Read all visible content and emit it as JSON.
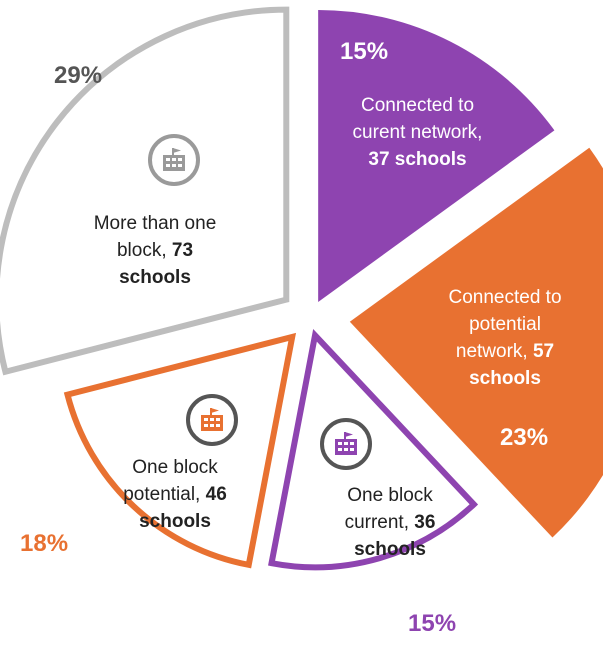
{
  "chart_data": {
    "type": "pie",
    "slices": [
      {
        "label": "Connected to curent network, 37 schools",
        "value": 15,
        "pct_label": "15%",
        "color": "#8e44b0",
        "style": "filled"
      },
      {
        "label": "Connected to potential network, 57 schools",
        "value": 23,
        "pct_label": "23%",
        "color": "#e87131",
        "style": "filled"
      },
      {
        "label": "One block current, 36 schools",
        "value": 15,
        "pct_label": "15%",
        "color": "#8e44b0",
        "style": "outline"
      },
      {
        "label": "One block potential, 46 schools",
        "value": 18,
        "pct_label": "18%",
        "color": "#e87131",
        "style": "outline"
      },
      {
        "label": "More than one block, 73 schools",
        "value": 29,
        "pct_label": "29%",
        "color": "#bdbdbd",
        "style": "outline"
      }
    ]
  },
  "labels": {
    "s1": {
      "l1": "Connected to",
      "l2": "curent network,",
      "l3b": "37 schools"
    },
    "s2": {
      "l1": "Connected to",
      "l2": "potential",
      "l3a": "network, ",
      "l3b": "57",
      "l4b": "schools"
    },
    "s3": {
      "l1": "One block",
      "l2a": "current, ",
      "l2b": "36",
      "l3b": "schools"
    },
    "s4": {
      "l1": "One block",
      "l2a": "potential, ",
      "l2b": "46",
      "l3b": "schools"
    },
    "s5": {
      "l1": "More than one",
      "l2a": "block, ",
      "l2b": "73",
      "l3b": "schools"
    }
  },
  "icons": {
    "s3": "school-icon",
    "s4": "school-icon",
    "s5": "school-icon"
  },
  "colors": {
    "purple": "#8e44b0",
    "orange": "#e87131",
    "gray": "#bdbdbd",
    "pct_gray": "#555555"
  }
}
